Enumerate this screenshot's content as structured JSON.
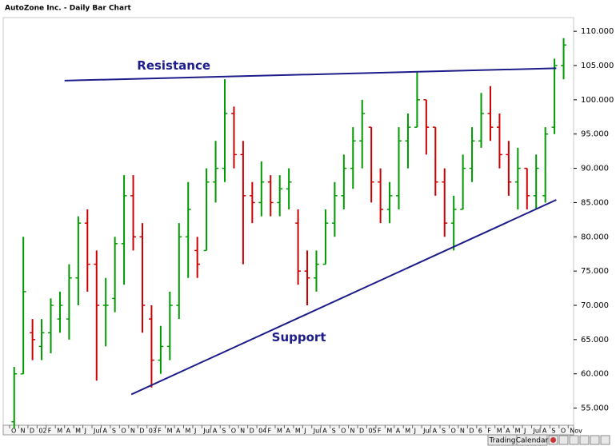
{
  "chart_data": {
    "type": "ohlc",
    "title": "AutoZone Inc. - Daily Bar Chart",
    "x": [
      0,
      1,
      2,
      3,
      4,
      5,
      6,
      7,
      8,
      9,
      10,
      11,
      12,
      13,
      14,
      15,
      16,
      17,
      18,
      19,
      20,
      21,
      22,
      23,
      24,
      25,
      26,
      27,
      28,
      29,
      30,
      31,
      32,
      33,
      34,
      35,
      36,
      37,
      38,
      39,
      40,
      41,
      42,
      43,
      44,
      45,
      46,
      47,
      48,
      49,
      50,
      51,
      52,
      53,
      54,
      55,
      56,
      57,
      58,
      59,
      60
    ],
    "open": [
      53,
      60,
      66,
      64,
      66,
      68,
      68,
      74,
      82,
      76,
      70,
      71,
      79,
      86,
      80,
      68,
      62,
      64,
      70,
      80,
      78,
      78,
      88,
      90,
      98,
      92,
      86,
      85,
      88,
      85,
      87,
      82,
      75,
      74,
      76,
      82,
      86,
      90,
      94,
      96,
      88,
      84,
      86,
      94,
      96,
      100,
      96,
      88,
      82,
      84,
      90,
      94,
      98,
      96,
      92,
      88,
      90,
      86,
      86,
      96,
      105
    ],
    "high": [
      61,
      80,
      68,
      68,
      71,
      72,
      76,
      83,
      84,
      78,
      74,
      80,
      89,
      89,
      82,
      70,
      67,
      72,
      82,
      88,
      80,
      90,
      94,
      103,
      99,
      94,
      88,
      91,
      89,
      89,
      90,
      84,
      78,
      78,
      84,
      88,
      92,
      96,
      100,
      96,
      90,
      88,
      96,
      98,
      104,
      100,
      96,
      90,
      86,
      92,
      96,
      101,
      102,
      98,
      94,
      93,
      90,
      92,
      96,
      106,
      109
    ],
    "low": [
      52,
      60,
      62,
      62,
      63,
      66,
      65,
      70,
      72,
      59,
      64,
      69,
      73,
      78,
      66,
      58,
      60,
      62,
      68,
      74,
      74,
      78,
      85,
      88,
      90,
      76,
      82,
      83,
      83,
      83,
      84,
      73,
      70,
      72,
      76,
      80,
      84,
      87,
      90,
      85,
      82,
      82,
      84,
      90,
      96,
      92,
      86,
      80,
      78,
      84,
      88,
      93,
      94,
      90,
      86,
      84,
      84,
      84,
      85,
      95,
      103
    ],
    "close": [
      60,
      72,
      65,
      66,
      70,
      70,
      74,
      82,
      76,
      70,
      70,
      79,
      86,
      80,
      70,
      62,
      64,
      70,
      80,
      84,
      76,
      88,
      90,
      98,
      92,
      86,
      85,
      88,
      85,
      87,
      88,
      75,
      74,
      76,
      82,
      86,
      90,
      94,
      98,
      88,
      84,
      86,
      94,
      96,
      100,
      96,
      88,
      82,
      84,
      90,
      94,
      98,
      96,
      92,
      88,
      90,
      86,
      90,
      95,
      105,
      108
    ],
    "up_color": "#009900",
    "down_color": "#cc0000",
    "xlim": [
      0,
      61.5
    ],
    "xticks": [
      {
        "value": 0,
        "label": "O"
      },
      {
        "value": 1,
        "label": "N"
      },
      {
        "value": 2,
        "label": "D"
      },
      {
        "value": 3,
        "label": "02"
      },
      {
        "value": 4,
        "label": "F"
      },
      {
        "value": 5,
        "label": "M"
      },
      {
        "value": 6,
        "label": "A"
      },
      {
        "value": 7,
        "label": "M"
      },
      {
        "value": 8,
        "label": "J"
      },
      {
        "value": 9,
        "label": "Jul"
      },
      {
        "value": 10,
        "label": "A"
      },
      {
        "value": 11,
        "label": "S"
      },
      {
        "value": 12,
        "label": "O"
      },
      {
        "value": 13,
        "label": "N"
      },
      {
        "value": 14,
        "label": "D"
      },
      {
        "value": 15,
        "label": "03"
      },
      {
        "value": 16,
        "label": "F"
      },
      {
        "value": 17,
        "label": "M"
      },
      {
        "value": 18,
        "label": "A"
      },
      {
        "value": 19,
        "label": "M"
      },
      {
        "value": 20,
        "label": "J"
      },
      {
        "value": 21,
        "label": "Jul"
      },
      {
        "value": 22,
        "label": "A"
      },
      {
        "value": 23,
        "label": "S"
      },
      {
        "value": 24,
        "label": "O"
      },
      {
        "value": 25,
        "label": "N"
      },
      {
        "value": 26,
        "label": "D"
      },
      {
        "value": 27,
        "label": "04"
      },
      {
        "value": 28,
        "label": "F"
      },
      {
        "value": 29,
        "label": "M"
      },
      {
        "value": 30,
        "label": "A"
      },
      {
        "value": 31,
        "label": "M"
      },
      {
        "value": 32,
        "label": "J"
      },
      {
        "value": 33,
        "label": "Jul"
      },
      {
        "value": 34,
        "label": "A"
      },
      {
        "value": 35,
        "label": "S"
      },
      {
        "value": 36,
        "label": "O"
      },
      {
        "value": 37,
        "label": "N"
      },
      {
        "value": 38,
        "label": "D"
      },
      {
        "value": 39,
        "label": "05"
      },
      {
        "value": 40,
        "label": "F"
      },
      {
        "value": 41,
        "label": "M"
      },
      {
        "value": 42,
        "label": "A"
      },
      {
        "value": 43,
        "label": "M"
      },
      {
        "value": 44,
        "label": "J"
      },
      {
        "value": 45,
        "label": "Jul"
      },
      {
        "value": 46,
        "label": "A"
      },
      {
        "value": 47,
        "label": "S"
      },
      {
        "value": 48,
        "label": "O"
      },
      {
        "value": 49,
        "label": "N"
      },
      {
        "value": 50,
        "label": "D"
      },
      {
        "value": 51,
        "label": "6"
      },
      {
        "value": 52,
        "label": "F"
      },
      {
        "value": 53,
        "label": "M"
      },
      {
        "value": 54,
        "label": "A"
      },
      {
        "value": 55,
        "label": "M"
      },
      {
        "value": 56,
        "label": "J"
      },
      {
        "value": 57,
        "label": "Jul"
      },
      {
        "value": 58,
        "label": "A"
      },
      {
        "value": 59,
        "label": "S"
      },
      {
        "value": 60,
        "label": "O"
      },
      {
        "value": 61,
        "label": "Nov"
      }
    ],
    "ylim": [
      52.5,
      112
    ],
    "yticks": [
      {
        "value": 55,
        "label": "55.000"
      },
      {
        "value": 60,
        "label": "60.000"
      },
      {
        "value": 65,
        "label": "65.000"
      },
      {
        "value": 70,
        "label": "70.000"
      },
      {
        "value": 75,
        "label": "75.000"
      },
      {
        "value": 80,
        "label": "80.000"
      },
      {
        "value": 85,
        "label": "85.000"
      },
      {
        "value": 90,
        "label": "90.000"
      },
      {
        "value": 95,
        "label": "95.000"
      },
      {
        "value": 100,
        "label": "100.000"
      },
      {
        "value": 105,
        "label": "105.000"
      },
      {
        "value": 110,
        "label": "110.000"
      }
    ],
    "trendlines": [
      {
        "label": "Resistance",
        "color": "#1c1c8a",
        "x": [
          6.0,
          59.7
        ],
        "y": [
          102.8,
          104.6
        ]
      },
      {
        "label": "Support",
        "color": "#1c1c8a",
        "x": [
          13.3,
          59.7
        ],
        "y": [
          57.0,
          85.4
        ]
      }
    ],
    "tabs": [
      "Trading",
      "Calendar"
    ]
  }
}
